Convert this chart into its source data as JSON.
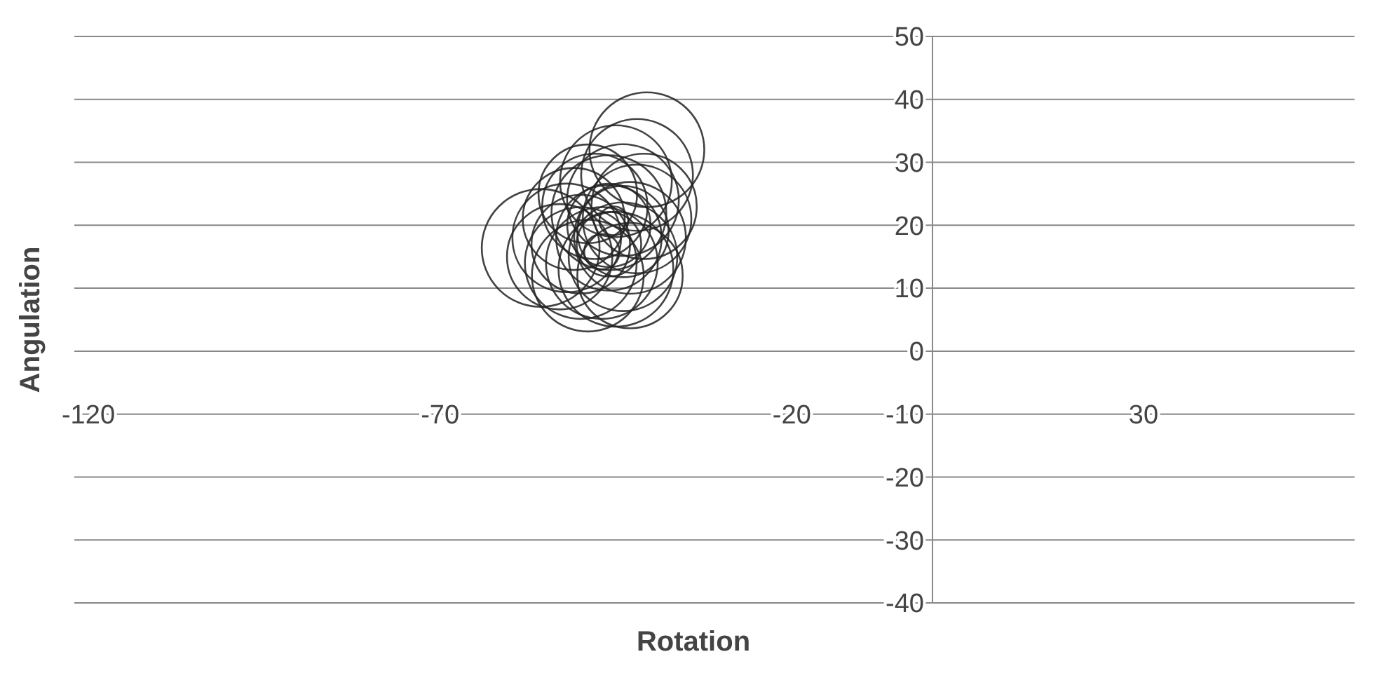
{
  "chart_data": {
    "type": "bubble",
    "xlabel": "Rotation",
    "ylabel": "Angulation",
    "xlim": [
      -120,
      60
    ],
    "ylim": [
      -40,
      50
    ],
    "xticks": [
      -120,
      -70,
      -20,
      30
    ],
    "yticks": [
      -40,
      -30,
      -20,
      -10,
      0,
      10,
      20,
      30,
      40,
      50
    ],
    "grid": "y",
    "marker": "circle",
    "series": [
      {
        "color": "#222222",
        "x": [
          -55.7,
          -50,
          -52,
          -46,
          -44,
          -40.6,
          -42,
          -45,
          -49,
          -43,
          -46,
          -44,
          -48,
          -51,
          -42,
          -45,
          -50,
          -47,
          -44,
          -46,
          -45.3,
          -47,
          -46,
          -43,
          -49,
          -41,
          -53
        ],
        "values": [
          16.4,
          14,
          18,
          22,
          24,
          32,
          28,
          13,
          12,
          18,
          18,
          15,
          23,
          21,
          21,
          27,
          17,
          14,
          19,
          20,
          20.7,
          15.8,
          17,
          12,
          25,
          23,
          15
        ],
        "sizes": [
          1,
          0.9,
          0.85,
          0.95,
          0.9,
          0.95,
          0.9,
          0.95,
          0.9,
          0.9,
          0.8,
          0.85,
          0.8,
          0.75,
          0.85,
          0.9,
          0.7,
          0.9,
          0.6,
          0.5,
          0.06,
          0.09,
          0.3,
          0.8,
          0.7,
          0.8,
          0.8
        ]
      }
    ]
  }
}
